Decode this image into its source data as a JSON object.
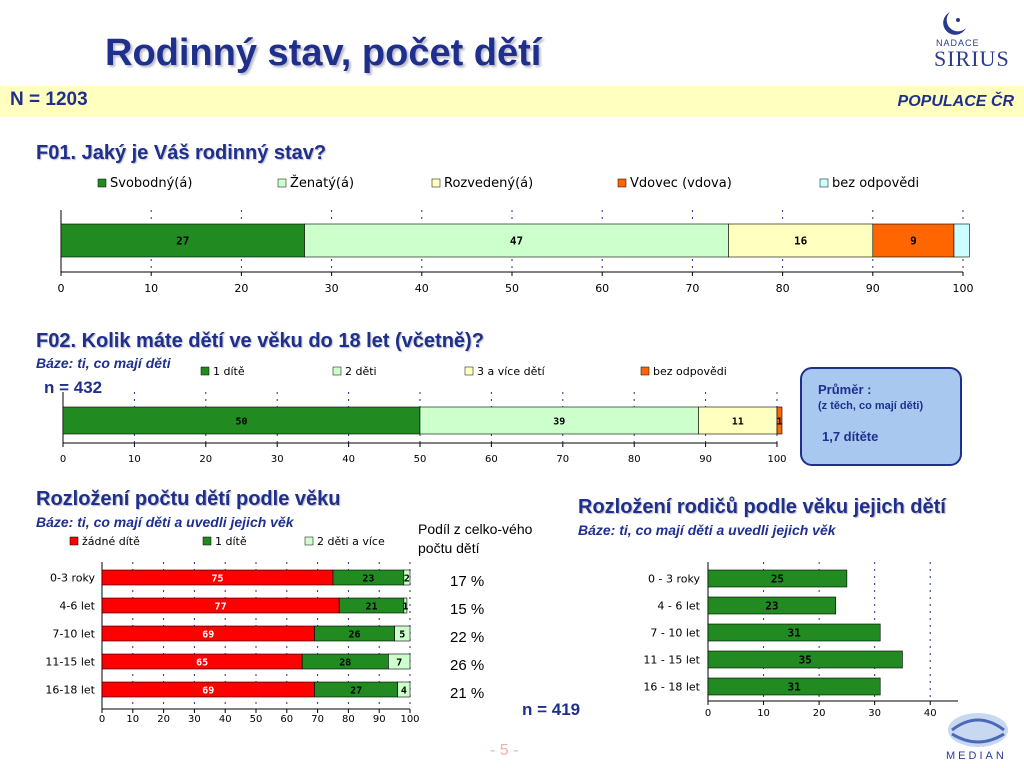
{
  "header": {
    "title": "Rodinný stav, počet dětí",
    "sample": "N = 1203",
    "population": "POPULACE ČR",
    "logo_top": [
      "NADACE",
      "SIRIUS"
    ]
  },
  "q1": {
    "question": "F01. Jaký je Váš rodinný stav?"
  },
  "q2": {
    "question": "F02. Kolik máte dětí ve věku do 18 let (včetně)?",
    "base": "Báze: ti, co mají děti",
    "n": "n = 432"
  },
  "q3": {
    "question": "Rozložení počtu dětí podle věku",
    "base": "Báze: ti, co mají děti a uvedli jejich věk",
    "n": "n = 419",
    "share_header": "Podíl z celko-vého počtu dětí",
    "shares": [
      "17 %",
      "15 %",
      "22 %",
      "26 %",
      "21 %"
    ]
  },
  "q4": {
    "question": "Rozložení rodičů podle věku jejich dětí",
    "base": "Báze: ti, co mají děti a uvedli jejich věk"
  },
  "average": {
    "title": "Průměr :",
    "note": "(z těch, co mají děti)",
    "value": "1,7 dítěte"
  },
  "footer": {
    "page": "- 5 -",
    "logo": "MEDIAN"
  },
  "colors": {
    "dark_green": "#218a21",
    "light_green": "#ccffcc",
    "light_yellow": "#ffffc0",
    "orange": "#ff6600",
    "light_cyan": "#ccffff",
    "red": "#ff0000",
    "navy": "#1f2f8c",
    "header_band": "#ffffc0"
  },
  "chart_data": [
    {
      "type": "bar",
      "orientation": "horizontal",
      "stacked": true,
      "categories": [
        ""
      ],
      "series": [
        {
          "name": "Svobodný(á)",
          "values": [
            27
          ],
          "color": "#218a21",
          "label": "27"
        },
        {
          "name": "Ženatý(á)",
          "values": [
            47
          ],
          "color": "#ccffcc",
          "label": "47"
        },
        {
          "name": "Rozvedený(á)",
          "values": [
            16
          ],
          "color": "#ffffc0",
          "label": "16"
        },
        {
          "name": "Vdovec (vdova)",
          "values": [
            9
          ],
          "color": "#ff6600",
          "label": "9"
        },
        {
          "name": "bez odpovědi",
          "values": [
            1.7
          ],
          "color": "#ccffff",
          "label": ""
        }
      ],
      "xlim": [
        0,
        100
      ],
      "xticks": [
        "0",
        "10",
        "20",
        "30",
        "40",
        "50",
        "60",
        "70",
        "80",
        "90",
        "100"
      ],
      "legend": "top",
      "grid": "vertical dashed"
    },
    {
      "type": "bar",
      "orientation": "horizontal",
      "stacked": true,
      "categories": [
        ""
      ],
      "series": [
        {
          "name": "1 dítě",
          "values": [
            50
          ],
          "color": "#218a21",
          "label": "50"
        },
        {
          "name": "2 děti",
          "values": [
            39
          ],
          "color": "#ccffcc",
          "label": "39"
        },
        {
          "name": "3 a více dětí",
          "values": [
            11
          ],
          "color": "#ffffc0",
          "label": "11"
        },
        {
          "name": "bez odpovědi",
          "values": [
            0.7
          ],
          "color": "#ff6600",
          "label": "1"
        }
      ],
      "xlim": [
        0,
        100
      ],
      "xticks": [
        "0",
        "10",
        "20",
        "30",
        "40",
        "50",
        "60",
        "70",
        "80",
        "90",
        "100"
      ],
      "legend": "top",
      "grid": "vertical dashed"
    },
    {
      "type": "bar",
      "orientation": "horizontal",
      "stacked": true,
      "categories": [
        "0-3 roky",
        "4-6 let",
        "7-10 let",
        "11-15 let",
        "16-18 let"
      ],
      "series": [
        {
          "name": "žádné dítě",
          "values": [
            75,
            77,
            69,
            65,
            69
          ],
          "color": "#ff0000"
        },
        {
          "name": "1 dítě",
          "values": [
            23,
            21,
            26,
            28,
            27
          ],
          "color": "#218a21"
        },
        {
          "name": "2 děti a více",
          "values": [
            2,
            1,
            5,
            7,
            4
          ],
          "color": "#ccffcc"
        }
      ],
      "xlim": [
        0,
        100
      ],
      "xticks": [
        "0",
        "10",
        "20",
        "30",
        "40",
        "50",
        "60",
        "70",
        "80",
        "90",
        "100"
      ],
      "legend": "top",
      "grid": "vertical dashed"
    },
    {
      "type": "bar",
      "orientation": "horizontal",
      "categories": [
        "0 - 3 roky",
        "4 - 6 let",
        "7 - 10 let",
        "11 - 15 let",
        "16 - 18 let"
      ],
      "series": [
        {
          "values": [
            25,
            23,
            31,
            35,
            31
          ],
          "color": "#218a21"
        }
      ],
      "xlim": [
        0,
        45
      ],
      "xticks": [
        "0",
        "10",
        "20",
        "30",
        "40"
      ],
      "grid": "vertical dashed"
    }
  ]
}
